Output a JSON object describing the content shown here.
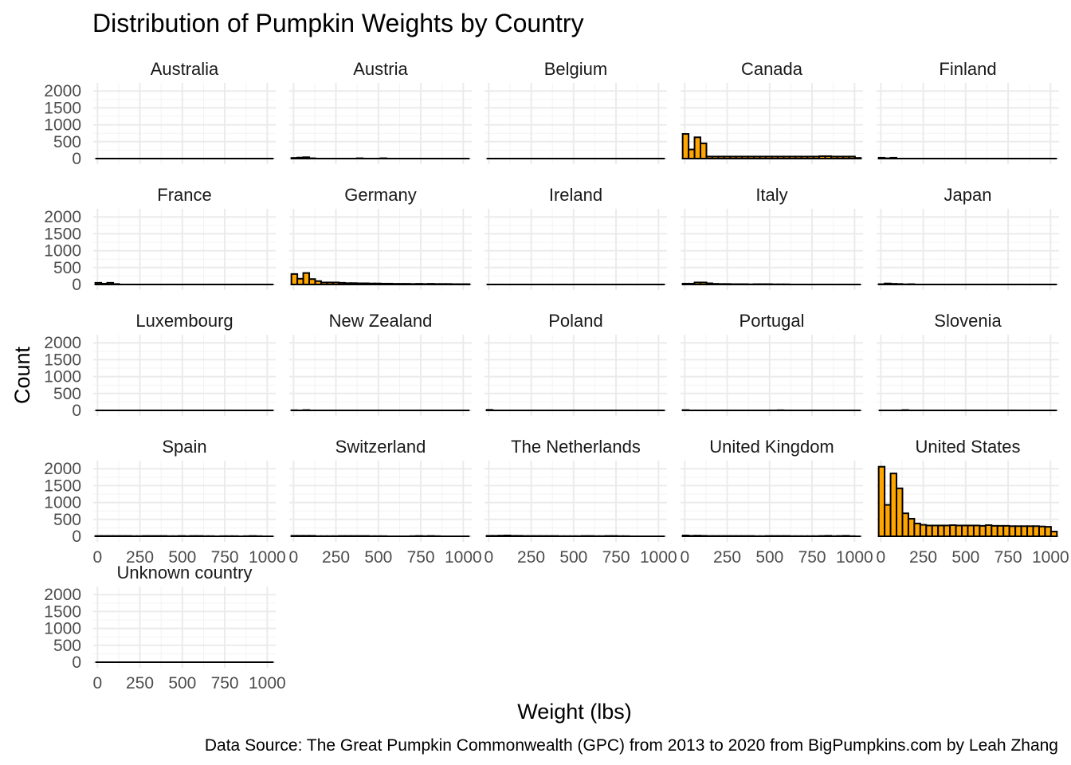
{
  "chart_data": {
    "type": "bar",
    "subtype": "faceted-histogram",
    "title": "Distribution of Pumpkin Weights by Country",
    "xlabel": "Weight (lbs)",
    "ylabel": "Count",
    "caption": "Data Source: The Great Pumpkin Commonwealth (GPC) from 2013 to 2020 from BigPumpkins.com by Leah Zhang",
    "xlim": [
      -25,
      1050
    ],
    "ylim": [
      0,
      2100
    ],
    "x_ticks": [
      0,
      250,
      500,
      750,
      1000
    ],
    "x_tick_labels": [
      "0",
      "250",
      "500",
      "750",
      "1000"
    ],
    "y_ticks": [
      0,
      500,
      1000,
      1500,
      2000
    ],
    "y_tick_labels": [
      "0",
      "500",
      "1000",
      "1500",
      "2000"
    ],
    "grid": true,
    "bar_fill": "#FFA500",
    "bar_outline": "#000000",
    "bin_start": -12.5,
    "bin_width": 35,
    "bin_count": 30,
    "facets": [
      {
        "name": "Australia",
        "values": [
          0,
          0,
          0,
          0,
          0,
          0,
          0,
          0,
          0,
          0,
          0,
          0,
          0,
          0,
          0,
          0,
          0,
          0,
          0,
          0,
          0,
          0,
          0,
          0,
          0,
          0,
          0,
          0,
          0,
          0
        ]
      },
      {
        "name": "Austria",
        "values": [
          20,
          30,
          40,
          10,
          0,
          0,
          0,
          0,
          0,
          0,
          0,
          10,
          0,
          0,
          0,
          10,
          0,
          0,
          0,
          0,
          0,
          0,
          0,
          0,
          0,
          0,
          0,
          0,
          0,
          0
        ]
      },
      {
        "name": "Belgium",
        "values": [
          0,
          0,
          0,
          0,
          0,
          0,
          0,
          0,
          0,
          0,
          0,
          0,
          0,
          0,
          0,
          0,
          0,
          0,
          0,
          0,
          0,
          0,
          0,
          0,
          0,
          0,
          0,
          0,
          0,
          0
        ]
      },
      {
        "name": "Canada",
        "values": [
          730,
          270,
          630,
          450,
          60,
          60,
          60,
          60,
          60,
          60,
          60,
          60,
          60,
          60,
          60,
          60,
          60,
          60,
          60,
          60,
          60,
          60,
          60,
          70,
          70,
          60,
          60,
          60,
          60,
          20
        ]
      },
      {
        "name": "Finland",
        "values": [
          25,
          10,
          25,
          0,
          0,
          0,
          0,
          0,
          0,
          0,
          0,
          0,
          0,
          0,
          0,
          0,
          0,
          0,
          0,
          0,
          0,
          0,
          0,
          0,
          0,
          0,
          0,
          0,
          0,
          0
        ]
      },
      {
        "name": "France",
        "values": [
          50,
          25,
          50,
          15,
          0,
          0,
          0,
          0,
          0,
          0,
          0,
          0,
          0,
          0,
          0,
          0,
          0,
          0,
          0,
          0,
          0,
          0,
          0,
          0,
          0,
          0,
          0,
          0,
          0,
          0
        ]
      },
      {
        "name": "Germany",
        "values": [
          310,
          170,
          340,
          160,
          100,
          60,
          60,
          60,
          50,
          40,
          40,
          35,
          35,
          30,
          30,
          25,
          25,
          20,
          20,
          20,
          15,
          20,
          15,
          20,
          15,
          15,
          15,
          10,
          10,
          10
        ]
      },
      {
        "name": "Ireland",
        "values": [
          0,
          0,
          0,
          0,
          0,
          0,
          0,
          0,
          0,
          0,
          0,
          0,
          0,
          0,
          0,
          0,
          0,
          0,
          0,
          0,
          0,
          0,
          0,
          0,
          0,
          0,
          0,
          0,
          0,
          0
        ]
      },
      {
        "name": "Italy",
        "values": [
          25,
          25,
          60,
          60,
          35,
          20,
          15,
          15,
          10,
          10,
          10,
          5,
          10,
          10,
          10,
          5,
          5,
          5,
          0,
          0,
          0,
          0,
          0,
          0,
          0,
          0,
          0,
          0,
          0,
          0
        ]
      },
      {
        "name": "Japan",
        "values": [
          10,
          30,
          20,
          15,
          5,
          10,
          0,
          0,
          0,
          0,
          0,
          0,
          0,
          0,
          0,
          0,
          0,
          0,
          0,
          0,
          0,
          0,
          0,
          0,
          0,
          0,
          0,
          0,
          0,
          0
        ]
      },
      {
        "name": "Luxembourg",
        "values": [
          0,
          0,
          0,
          0,
          0,
          0,
          0,
          0,
          0,
          0,
          0,
          0,
          0,
          0,
          0,
          0,
          0,
          0,
          0,
          0,
          0,
          0,
          0,
          0,
          0,
          0,
          0,
          0,
          0,
          0
        ]
      },
      {
        "name": "New Zealand",
        "values": [
          5,
          0,
          10,
          0,
          0,
          0,
          0,
          0,
          0,
          0,
          0,
          0,
          0,
          0,
          0,
          0,
          0,
          0,
          0,
          0,
          0,
          0,
          0,
          0,
          0,
          0,
          0,
          0,
          0,
          0
        ]
      },
      {
        "name": "Poland",
        "values": [
          15,
          0,
          0,
          0,
          0,
          0,
          0,
          0,
          0,
          0,
          0,
          0,
          0,
          0,
          0,
          0,
          0,
          0,
          0,
          0,
          0,
          0,
          0,
          0,
          0,
          0,
          0,
          0,
          0,
          0
        ]
      },
      {
        "name": "Portugal",
        "values": [
          10,
          0,
          0,
          0,
          0,
          0,
          0,
          0,
          0,
          0,
          0,
          0,
          0,
          0,
          0,
          0,
          5,
          0,
          0,
          0,
          0,
          0,
          0,
          0,
          0,
          0,
          0,
          0,
          0,
          0
        ]
      },
      {
        "name": "Slovenia",
        "values": [
          0,
          0,
          0,
          0,
          10,
          0,
          0,
          0,
          0,
          0,
          0,
          0,
          0,
          0,
          0,
          0,
          0,
          0,
          0,
          0,
          0,
          0,
          0,
          0,
          0,
          0,
          0,
          0,
          0,
          0
        ]
      },
      {
        "name": "Spain",
        "values": [
          10,
          10,
          10,
          10,
          10,
          10,
          5,
          5,
          10,
          10,
          10,
          10,
          5,
          5,
          10,
          5,
          10,
          10,
          5,
          5,
          0,
          5,
          5,
          5,
          0,
          5,
          10,
          5,
          0,
          0
        ]
      },
      {
        "name": "Switzerland",
        "values": [
          15,
          15,
          15,
          15,
          5,
          5,
          5,
          5,
          10,
          10,
          10,
          10,
          10,
          5,
          5,
          5,
          0,
          0,
          0,
          0,
          5,
          10,
          5,
          10,
          5,
          0,
          0,
          0,
          0,
          0
        ]
      },
      {
        "name": "The Netherlands",
        "values": [
          15,
          15,
          20,
          25,
          15,
          15,
          10,
          10,
          10,
          10,
          10,
          10,
          5,
          5,
          5,
          5,
          10,
          10,
          5,
          5,
          10,
          10,
          5,
          5,
          0,
          0,
          0,
          0,
          0,
          0
        ]
      },
      {
        "name": "United Kingdom",
        "values": [
          25,
          15,
          20,
          15,
          10,
          10,
          10,
          10,
          10,
          10,
          10,
          10,
          5,
          5,
          10,
          10,
          10,
          10,
          5,
          5,
          5,
          5,
          5,
          10,
          15,
          5,
          10,
          15,
          5,
          0
        ]
      },
      {
        "name": "United States",
        "values": [
          2060,
          930,
          1860,
          1420,
          680,
          520,
          380,
          340,
          320,
          320,
          320,
          320,
          330,
          320,
          320,
          320,
          320,
          310,
          330,
          310,
          310,
          310,
          300,
          300,
          300,
          300,
          300,
          290,
          280,
          140
        ]
      },
      {
        "name": "Unknown country",
        "values": [
          0,
          0,
          0,
          0,
          0,
          0,
          0,
          0,
          0,
          0,
          0,
          0,
          0,
          0,
          0,
          0,
          0,
          0,
          0,
          0,
          0,
          0,
          0,
          0,
          0,
          0,
          0,
          0,
          0,
          0
        ]
      }
    ]
  }
}
